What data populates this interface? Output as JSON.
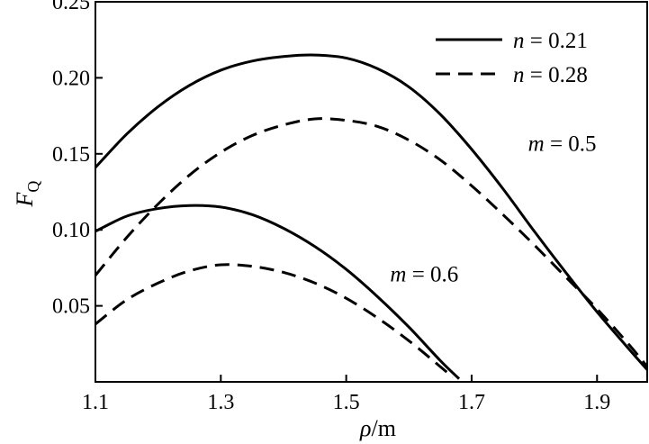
{
  "chart_data": {
    "type": "line",
    "xlabel": {
      "symbol": "ρ",
      "unit": "/m"
    },
    "ylabel": {
      "symbol": "F",
      "subscript": "Q"
    },
    "xlim": [
      1.1,
      1.98
    ],
    "ylim": [
      0.0,
      0.25
    ],
    "x_ticks": [
      "1.1",
      "1.3",
      "1.5",
      "1.7",
      "1.9"
    ],
    "x_tick_values": [
      1.1,
      1.3,
      1.5,
      1.7,
      1.9
    ],
    "y_ticks": [
      "0.05",
      "0.10",
      "0.15",
      "0.20",
      "0.25"
    ],
    "y_tick_values": [
      0.05,
      0.1,
      0.15,
      0.2,
      0.25
    ],
    "grid": false,
    "legend": {
      "placement": "top-right",
      "entries": [
        {
          "var": "n",
          "text": " = 0.21",
          "style": "solid"
        },
        {
          "var": "n",
          "text": " = 0.28",
          "style": "dashed"
        }
      ]
    },
    "annotations": [
      {
        "var": "m",
        "text": " = 0.5",
        "x": 1.79,
        "y": 0.152
      },
      {
        "var": "m",
        "text": " = 0.6",
        "x": 1.57,
        "y": 0.066
      }
    ],
    "series": [
      {
        "style": "solid",
        "group": "m = 0.5, n = 0.21",
        "x": [
          1.1,
          1.15,
          1.2,
          1.25,
          1.3,
          1.35,
          1.4,
          1.45,
          1.5,
          1.55,
          1.6,
          1.65,
          1.7,
          1.75,
          1.8,
          1.85,
          1.9,
          1.95,
          1.98
        ],
        "y": [
          0.141,
          0.163,
          0.181,
          0.195,
          0.205,
          0.211,
          0.214,
          0.215,
          0.213,
          0.206,
          0.194,
          0.176,
          0.153,
          0.127,
          0.099,
          0.072,
          0.046,
          0.022,
          0.008
        ]
      },
      {
        "style": "dashed",
        "group": "m = 0.5, n = 0.28",
        "x": [
          1.1,
          1.15,
          1.2,
          1.25,
          1.3,
          1.35,
          1.4,
          1.45,
          1.5,
          1.55,
          1.6,
          1.65,
          1.7,
          1.75,
          1.8,
          1.85,
          1.9,
          1.95,
          1.98
        ],
        "y": [
          0.07,
          0.095,
          0.117,
          0.136,
          0.151,
          0.162,
          0.169,
          0.173,
          0.172,
          0.168,
          0.159,
          0.146,
          0.129,
          0.11,
          0.09,
          0.069,
          0.048,
          0.025,
          0.01
        ]
      },
      {
        "style": "solid",
        "group": "m = 0.6, n = 0.21",
        "x": [
          1.1,
          1.15,
          1.2,
          1.25,
          1.3,
          1.35,
          1.4,
          1.45,
          1.5,
          1.55,
          1.6,
          1.65,
          1.68
        ],
        "y": [
          0.099,
          0.109,
          0.114,
          0.116,
          0.115,
          0.11,
          0.101,
          0.089,
          0.074,
          0.056,
          0.036,
          0.014,
          0.002
        ]
      },
      {
        "style": "dashed",
        "group": "m = 0.6, n = 0.28",
        "x": [
          1.1,
          1.15,
          1.2,
          1.25,
          1.3,
          1.35,
          1.4,
          1.45,
          1.5,
          1.55,
          1.6,
          1.65,
          1.67
        ],
        "y": [
          0.038,
          0.054,
          0.065,
          0.073,
          0.077,
          0.076,
          0.072,
          0.065,
          0.055,
          0.042,
          0.027,
          0.01,
          0.003
        ]
      }
    ]
  }
}
